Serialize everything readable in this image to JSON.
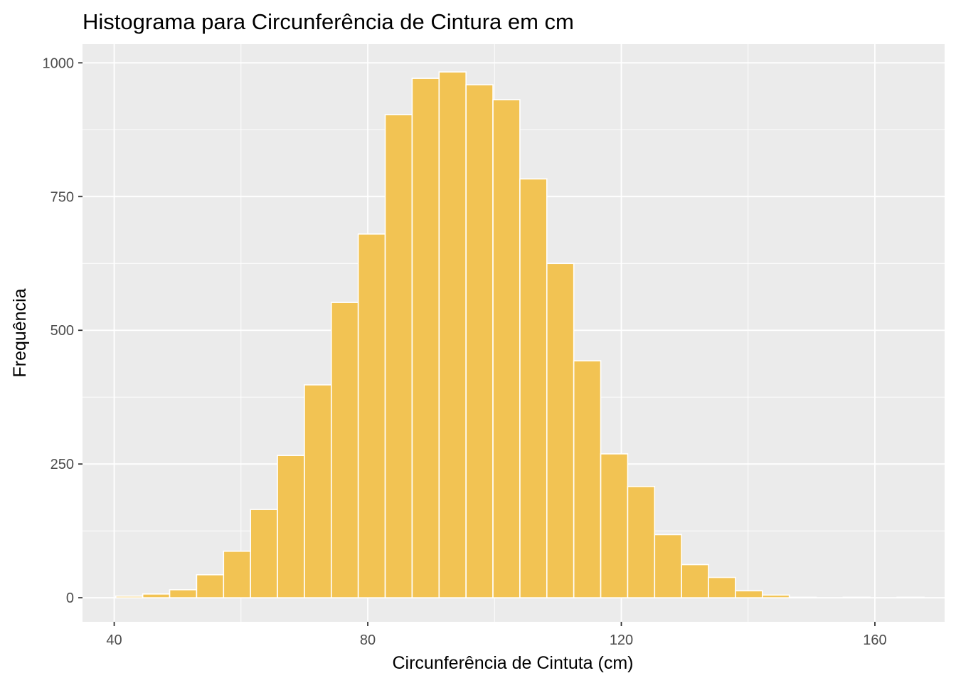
{
  "chart_data": {
    "type": "bar",
    "title": "Histograma para Circunferência de Cintura em cm",
    "xlabel": "Circunferência de Cintuta (cm)",
    "ylabel": "Frequência",
    "xlim": [
      35,
      171
    ],
    "ylim": [
      -45,
      1035
    ],
    "bin_width": 4.25,
    "x_ticks": [
      40,
      80,
      120,
      160
    ],
    "y_ticks": [
      0,
      250,
      500,
      750,
      1000
    ],
    "grid": true,
    "bins": [
      {
        "x0": 40.25,
        "x1": 44.5,
        "count": 3
      },
      {
        "x0": 44.5,
        "x1": 48.75,
        "count": 7
      },
      {
        "x0": 48.75,
        "x1": 53.0,
        "count": 15
      },
      {
        "x0": 53.0,
        "x1": 57.25,
        "count": 43
      },
      {
        "x0": 57.25,
        "x1": 61.5,
        "count": 87
      },
      {
        "x0": 61.5,
        "x1": 65.75,
        "count": 165
      },
      {
        "x0": 65.75,
        "x1": 70.0,
        "count": 266
      },
      {
        "x0": 70.0,
        "x1": 74.25,
        "count": 398
      },
      {
        "x0": 74.25,
        "x1": 78.5,
        "count": 552
      },
      {
        "x0": 78.5,
        "x1": 82.75,
        "count": 680
      },
      {
        "x0": 82.75,
        "x1": 87.0,
        "count": 903
      },
      {
        "x0": 87.0,
        "x1": 91.25,
        "count": 971
      },
      {
        "x0": 91.25,
        "x1": 95.5,
        "count": 983
      },
      {
        "x0": 95.5,
        "x1": 99.75,
        "count": 959
      },
      {
        "x0": 99.75,
        "x1": 104.0,
        "count": 931
      },
      {
        "x0": 104.0,
        "x1": 108.25,
        "count": 783
      },
      {
        "x0": 108.25,
        "x1": 112.5,
        "count": 625
      },
      {
        "x0": 112.5,
        "x1": 116.75,
        "count": 443
      },
      {
        "x0": 116.75,
        "x1": 121.0,
        "count": 269
      },
      {
        "x0": 121.0,
        "x1": 125.25,
        "count": 208
      },
      {
        "x0": 125.25,
        "x1": 129.5,
        "count": 118
      },
      {
        "x0": 129.5,
        "x1": 133.75,
        "count": 62
      },
      {
        "x0": 133.75,
        "x1": 138.0,
        "count": 38
      },
      {
        "x0": 138.0,
        "x1": 142.25,
        "count": 13
      },
      {
        "x0": 142.25,
        "x1": 146.5,
        "count": 5
      },
      {
        "x0": 146.5,
        "x1": 150.75,
        "count": 1
      },
      {
        "x0": 150.75,
        "x1": 155.0,
        "count": 0
      },
      {
        "x0": 155.0,
        "x1": 159.25,
        "count": 1
      },
      {
        "x0": 159.25,
        "x1": 163.5,
        "count": 0
      },
      {
        "x0": 163.5,
        "x1": 167.75,
        "count": 1
      }
    ],
    "colors": {
      "bar_fill": "#F2C353",
      "bar_stroke": "#FFFFFF",
      "panel_bg": "#EBEBEB",
      "grid": "#FFFFFF"
    }
  }
}
